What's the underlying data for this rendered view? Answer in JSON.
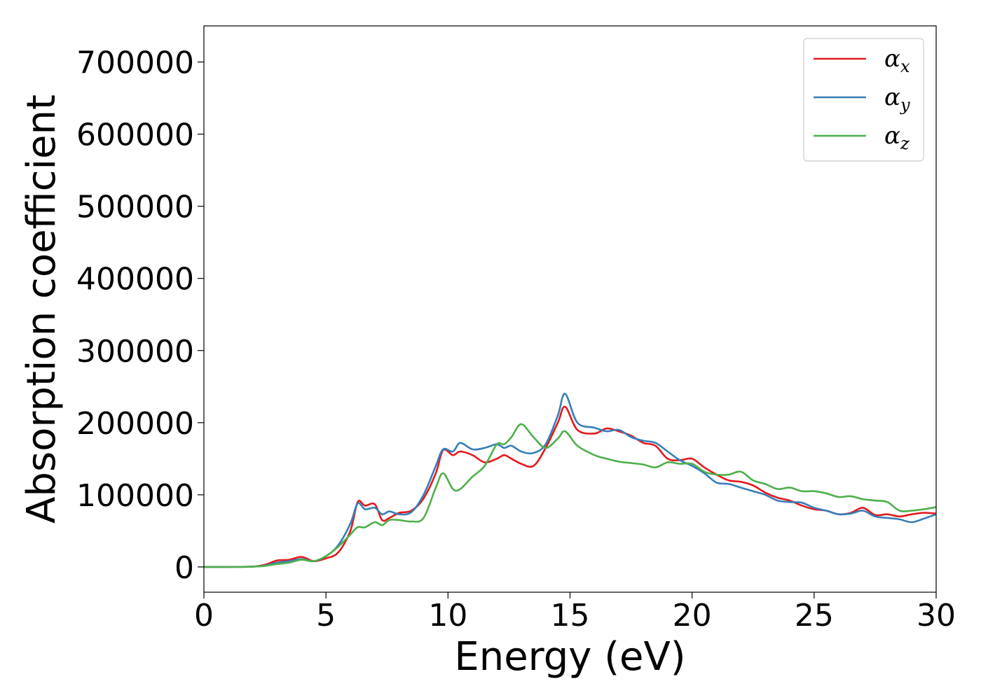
{
  "chart_data": {
    "type": "line",
    "title": "",
    "xlabel": "Energy (eV)",
    "ylabel": "Absorption coefficient",
    "xlim": [
      0,
      30
    ],
    "ylim": [
      -35000,
      750000
    ],
    "xticks": [
      0,
      5,
      10,
      15,
      20,
      25,
      30
    ],
    "yticks": [
      0,
      100000,
      200000,
      300000,
      400000,
      500000,
      600000,
      700000
    ],
    "grid": false,
    "legend_position": "top-right",
    "series": [
      {
        "name": "α_x",
        "symbol": "α",
        "subscript": "x",
        "color": "#e41a1c",
        "x": [
          0,
          1,
          2,
          2.5,
          3,
          3.5,
          4,
          4.5,
          5,
          5.5,
          6,
          6.3,
          6.6,
          7,
          7.3,
          7.6,
          8,
          8.5,
          9,
          9.5,
          9.8,
          10.2,
          10.5,
          11,
          11.5,
          12,
          12.3,
          12.6,
          13,
          13.5,
          14,
          14.5,
          14.8,
          15.3,
          16,
          16.5,
          17,
          17.5,
          18,
          18.5,
          19,
          19.5,
          20,
          20.5,
          21,
          21.5,
          22,
          22.5,
          23,
          23.5,
          24,
          24.5,
          25,
          25.5,
          26,
          26.5,
          27,
          27.5,
          28,
          28.5,
          29,
          29.5,
          30
        ],
        "y": [
          0,
          0,
          500,
          3000,
          9000,
          10000,
          14000,
          8000,
          12000,
          20000,
          50000,
          90000,
          85000,
          87000,
          65000,
          68000,
          75000,
          78000,
          95000,
          130000,
          162000,
          155000,
          160000,
          155000,
          145000,
          150000,
          155000,
          150000,
          143000,
          140000,
          165000,
          200000,
          222000,
          190000,
          185000,
          192000,
          188000,
          182000,
          172000,
          168000,
          150000,
          148000,
          150000,
          138000,
          128000,
          120000,
          118000,
          113000,
          103000,
          96000,
          92000,
          85000,
          80000,
          78000,
          73000,
          75000,
          82000,
          72000,
          73000,
          70000,
          73000,
          75000,
          74000
        ]
      },
      {
        "name": "α_y",
        "symbol": "α",
        "subscript": "y",
        "color": "#377eb8",
        "x": [
          0,
          1,
          2,
          2.5,
          3,
          3.5,
          4,
          4.5,
          5,
          5.5,
          6,
          6.3,
          6.6,
          7,
          7.3,
          7.6,
          8,
          8.5,
          9,
          9.5,
          9.8,
          10.2,
          10.5,
          11,
          11.5,
          12,
          12.3,
          12.6,
          13,
          13.5,
          14,
          14.5,
          14.8,
          15.3,
          16,
          16.5,
          17,
          17.5,
          18,
          18.5,
          19,
          19.5,
          20,
          20.5,
          21,
          21.5,
          22,
          22.5,
          23,
          23.5,
          24,
          24.5,
          25,
          25.5,
          26,
          26.5,
          27,
          27.5,
          28,
          28.5,
          29,
          29.5,
          30
        ],
        "y": [
          0,
          0,
          500,
          2000,
          6000,
          8000,
          11000,
          8000,
          15000,
          30000,
          60000,
          88000,
          80000,
          82000,
          73000,
          77000,
          73000,
          76000,
          100000,
          140000,
          163000,
          160000,
          172000,
          163000,
          165000,
          170000,
          165000,
          168000,
          160000,
          158000,
          170000,
          210000,
          240000,
          200000,
          193000,
          188000,
          190000,
          180000,
          175000,
          172000,
          160000,
          148000,
          140000,
          130000,
          117000,
          115000,
          110000,
          105000,
          100000,
          92000,
          90000,
          89000,
          82000,
          78000,
          73000,
          74000,
          78000,
          70000,
          68000,
          66000,
          62000,
          67000,
          73000
        ]
      },
      {
        "name": "α_z",
        "symbol": "α",
        "subscript": "z",
        "color": "#4daf4a",
        "x": [
          0,
          1,
          2,
          2.5,
          3,
          3.5,
          4,
          4.5,
          5,
          5.5,
          6,
          6.3,
          6.6,
          7,
          7.3,
          7.6,
          8,
          8.5,
          9,
          9.5,
          9.8,
          10.2,
          10.5,
          11,
          11.5,
          12,
          12.3,
          12.6,
          13,
          13.5,
          14,
          14.5,
          14.8,
          15.3,
          16,
          16.5,
          17,
          17.5,
          18,
          18.5,
          19,
          19.5,
          20,
          20.5,
          21,
          21.5,
          22,
          22.5,
          23,
          23.5,
          24,
          24.5,
          25,
          25.5,
          26,
          26.5,
          27,
          27.5,
          28,
          28.5,
          29,
          29.5,
          30
        ],
        "y": [
          0,
          0,
          500,
          1500,
          4000,
          6000,
          10000,
          8000,
          15000,
          28000,
          45000,
          55000,
          55000,
          62000,
          58000,
          65000,
          65000,
          63000,
          68000,
          110000,
          130000,
          108000,
          108000,
          125000,
          140000,
          170000,
          170000,
          180000,
          198000,
          180000,
          165000,
          178000,
          188000,
          168000,
          155000,
          150000,
          146000,
          144000,
          142000,
          138000,
          145000,
          143000,
          143000,
          132000,
          128000,
          128000,
          132000,
          120000,
          115000,
          108000,
          110000,
          105000,
          105000,
          102000,
          97000,
          98000,
          94000,
          92000,
          90000,
          78000,
          78000,
          80000,
          83000
        ]
      }
    ]
  }
}
